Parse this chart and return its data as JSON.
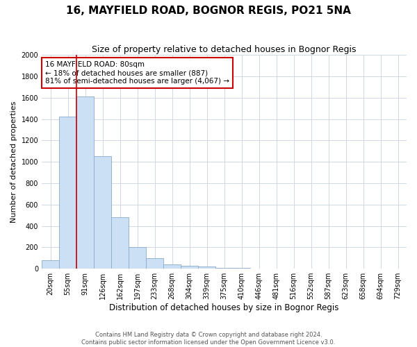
{
  "title": "16, MAYFIELD ROAD, BOGNOR REGIS, PO21 5NA",
  "subtitle": "Size of property relative to detached houses in Bognor Regis",
  "xlabel": "Distribution of detached houses by size in Bognor Regis",
  "ylabel": "Number of detached properties",
  "footer_line1": "Contains HM Land Registry data © Crown copyright and database right 2024.",
  "footer_line2": "Contains public sector information licensed under the Open Government Licence v3.0.",
  "categories": [
    "20sqm",
    "55sqm",
    "91sqm",
    "126sqm",
    "162sqm",
    "197sqm",
    "233sqm",
    "268sqm",
    "304sqm",
    "339sqm",
    "375sqm",
    "410sqm",
    "446sqm",
    "481sqm",
    "516sqm",
    "552sqm",
    "587sqm",
    "623sqm",
    "658sqm",
    "694sqm",
    "729sqm"
  ],
  "values": [
    80,
    1420,
    1610,
    1050,
    480,
    200,
    100,
    40,
    28,
    18,
    10,
    5,
    3,
    2,
    1,
    0,
    0,
    0,
    0,
    0,
    0
  ],
  "bar_color": "#cce0f5",
  "bar_edge_color": "#88aacc",
  "red_line_x": 1.5,
  "annotation_text": "16 MAYFIELD ROAD: 80sqm\n← 18% of detached houses are smaller (887)\n81% of semi-detached houses are larger (4,067) →",
  "annotation_box_color": "#ffffff",
  "annotation_box_edge": "#cc0000",
  "ylim": [
    0,
    2000
  ],
  "yticks": [
    0,
    200,
    400,
    600,
    800,
    1000,
    1200,
    1400,
    1600,
    1800,
    2000
  ],
  "grid_color": "#d0d8e8",
  "background_color": "#ffffff",
  "title_fontsize": 11,
  "subtitle_fontsize": 9,
  "xlabel_fontsize": 8.5,
  "ylabel_fontsize": 8,
  "tick_fontsize": 7,
  "annotation_fontsize": 7.5,
  "footer_fontsize": 6
}
